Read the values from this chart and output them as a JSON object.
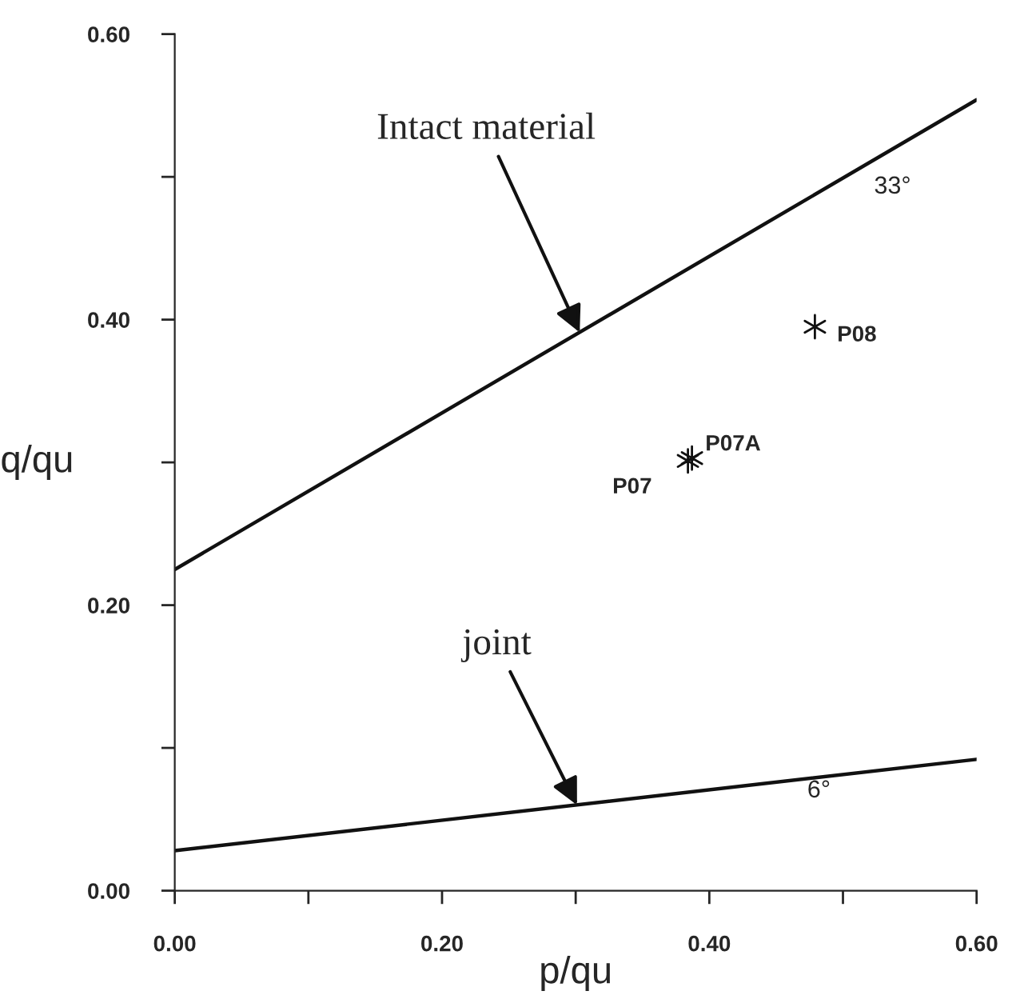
{
  "chart_data": {
    "type": "line",
    "xlabel": "p/qu",
    "ylabel": "q/qu",
    "xlim": [
      0,
      0.6
    ],
    "ylim": [
      0,
      0.6
    ],
    "xticks": [
      {
        "value": 0,
        "label": "0.00"
      },
      {
        "value": 0.1,
        "label": null
      },
      {
        "value": 0.2,
        "label": "0.20"
      },
      {
        "value": 0.3,
        "label": null
      },
      {
        "value": 0.4,
        "label": "0.40"
      },
      {
        "value": 0.5,
        "label": null
      },
      {
        "value": 0.6,
        "label": "0.60"
      }
    ],
    "yticks": [
      {
        "value": 0,
        "label": "0.00"
      },
      {
        "value": 0.1,
        "label": null
      },
      {
        "value": 0.2,
        "label": "0.20"
      },
      {
        "value": 0.3,
        "label": null
      },
      {
        "value": 0.4,
        "label": "0.40"
      },
      {
        "value": 0.5,
        "label": null
      },
      {
        "value": 0.6,
        "label": "0.60"
      }
    ],
    "grid": false,
    "legend": false,
    "series": [
      {
        "type": "line",
        "color": "#111111",
        "x": [
          0,
          0.6
        ],
        "values": [
          0.225,
          0.554
        ]
      },
      {
        "type": "line",
        "color": "#111111",
        "x": [
          0,
          0.6
        ],
        "values": [
          0.028,
          0.092
        ]
      },
      {
        "type": "scatter",
        "color": "#111111",
        "marker": "cross",
        "x": [
          0.384,
          0.387,
          0.479
        ],
        "values": [
          0.301,
          0.303,
          0.395
        ],
        "value_labels": [
          "P07",
          "P07A",
          "P08"
        ]
      }
    ],
    "annotations": [
      {
        "text": "Intact material",
        "x": 0.303,
        "y": 0.391
      },
      {
        "text": "joint",
        "x": 0.301,
        "y": 0.06
      },
      {
        "text": "33°",
        "x": 0.5,
        "y": 0.499
      },
      {
        "text": "6°",
        "x": 0.45,
        "y": 0.076
      }
    ]
  }
}
